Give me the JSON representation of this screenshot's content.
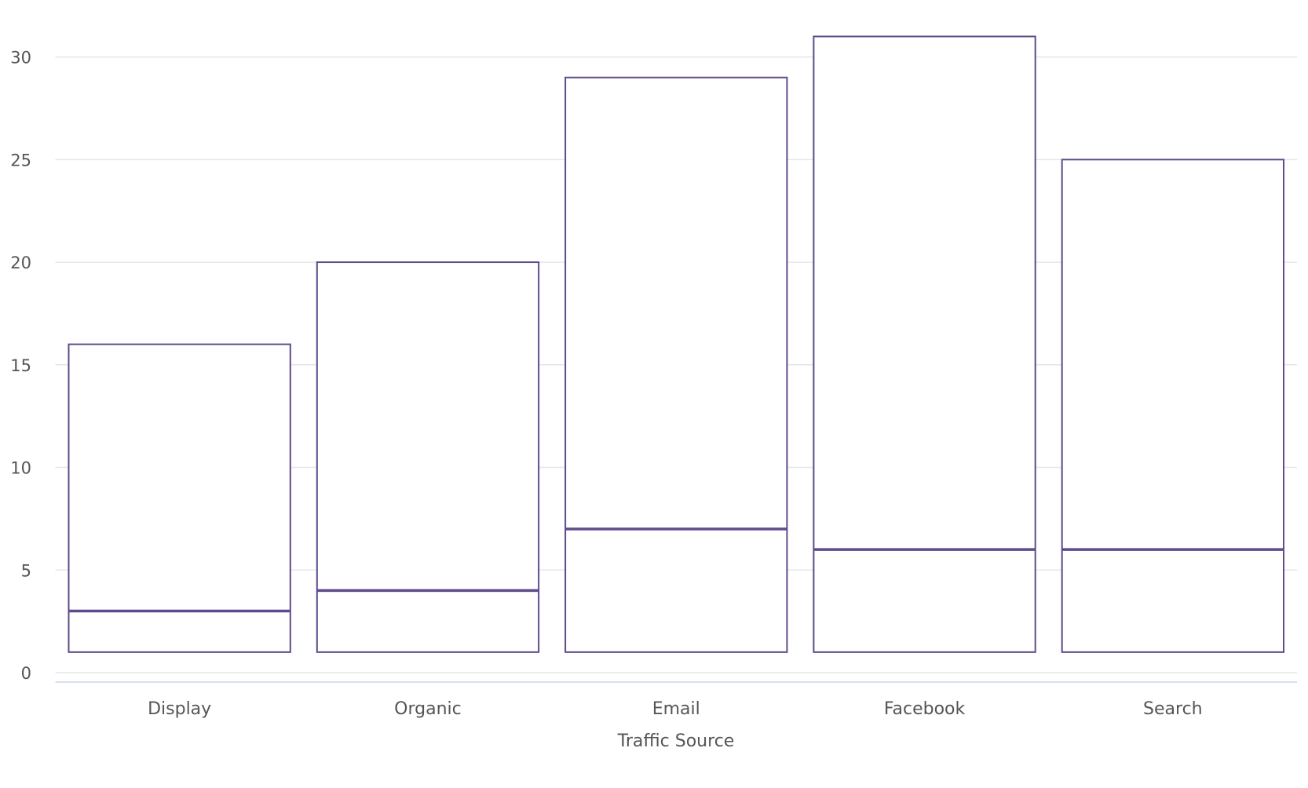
{
  "chart_data": {
    "type": "boxplot",
    "title": "",
    "xlabel": "Traffic Source",
    "ylabel": "",
    "categories": [
      "Display",
      "Organic",
      "Email",
      "Facebook",
      "Search"
    ],
    "series": [
      {
        "boxes": [
          {
            "low": 1,
            "q1": 1,
            "median": 3,
            "q3": 16,
            "high": 16
          },
          {
            "low": 1,
            "q1": 1,
            "median": 4,
            "q3": 20,
            "high": 20
          },
          {
            "low": 1,
            "q1": 1,
            "median": 7,
            "q3": 29,
            "high": 29
          },
          {
            "low": 1,
            "q1": 1,
            "median": 6,
            "q3": 31,
            "high": 31
          },
          {
            "low": 1,
            "q1": 1,
            "median": 6,
            "q3": 25,
            "high": 25
          }
        ]
      }
    ],
    "ylim": [
      0,
      32
    ],
    "yticks": [
      0,
      5,
      10,
      15,
      20,
      25,
      30
    ],
    "grid": true,
    "legend": "none",
    "colors": {
      "box": "#5f4b8b",
      "grid": "#e6e6e6",
      "axis": "#ccd6eb",
      "text": "#555555"
    }
  }
}
